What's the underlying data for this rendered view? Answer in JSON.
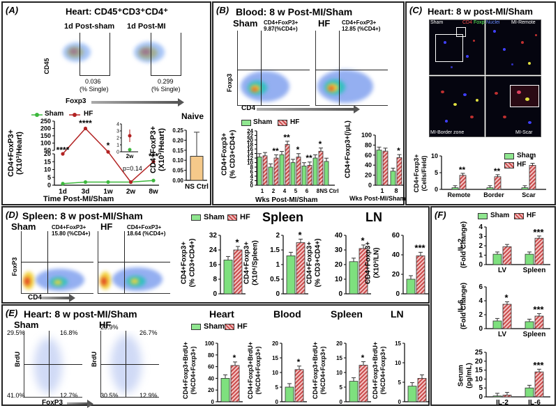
{
  "panelA": {
    "label": "(A)",
    "title": "Heart: CD45⁺CD3⁺CD4⁺",
    "sham_title": "1d Post-sham",
    "mi_title": "1d Post-MI",
    "x_marker": "Foxp3",
    "y_marker": "CD45",
    "sham_pct": "0.036",
    "mi_pct": "0.299",
    "pct_unit": "(% Single)",
    "legend_sham": "Sham",
    "legend_hf": "HF",
    "inset_x": "2w",
    "inset_p": "p=0.14",
    "naive_title": "Naive",
    "naive_x": "NS Ctrl",
    "ylabel": "CD4+FoxP3+",
    "ylabel2": "(X10³/Heart)",
    "xlabel": "Time Post-MI/Sham",
    "stars": [
      "****",
      "****",
      "*",
      "***"
    ]
  },
  "panelB": {
    "label": "(B)",
    "title": "Blood: 8 w Post-MI/Sham",
    "sham": "Sham",
    "hf": "HF",
    "gate1": "CD4+FoxP3+",
    "gate1b": "9.87(%CD4+)",
    "gate2": "CD4+FoxP3+",
    "gate2b": "12.85 (%CD4+)",
    "xm": "CD4",
    "ym": "Foxp3",
    "legend_sham": "Sham",
    "legend_hf": "HF",
    "ylabel_left": "CD4+Foxp3+",
    "ylabel_left2": "(% CD3+CD4+)",
    "xlabel_left": "Wks Post-MI/Sham",
    "ylabel_right": "CD4+Foxp3+(/μL)",
    "xlabel_right": "Wks Post-MI/Sham",
    "ns_ctrl": "NS Ctrl"
  },
  "panelC": {
    "label": "(C)",
    "title": "Heart: 8 w post-MI/Sham",
    "q_sham": "Sham",
    "q_cd4": "CD4",
    "q_foxp3": "Foxp3",
    "q_nuclei": "Nuclei",
    "q_remote": "MI-Remote",
    "q_border": "MI-Border zone",
    "q_scar": "MI-Scar",
    "legend_sham": "Sham",
    "legend_hf": "HF",
    "ylabel": "CD4+Foxp3+",
    "ylabel2": "(Cells/Field)"
  },
  "panelD": {
    "label": "(D)",
    "title": "Spleen: 8 w post-MI/Sham",
    "sham": "Sham",
    "hf": "HF",
    "gate1": "CD4+FoxP3+",
    "gate1b": "15.80 (%CD4+)",
    "gate2": "CD4+FoxP3+",
    "gate2b": "18.64 (%CD4+)",
    "xm": "CD4",
    "ym": "FoxP3",
    "legend_sham": "Sham",
    "legend_hf": "HF",
    "spleen": "Spleen",
    "ln": "LN",
    "yl1": "CD4+Foxp3+",
    "yl1b": "(% CD3+CD4+)",
    "yl2": "CD4+Foxp3+",
    "yl2b": "(X10⁶/Spleen)",
    "yl3": "CD4+Foxp3+",
    "yl3b": "(% CD3+CD4+)",
    "yl4": "CD4+Foxp3+",
    "yl4b": "(X10³/LN)"
  },
  "panelE": {
    "label": "(E)",
    "title": "Heart: 8 w post-MI/Sham",
    "sham": "Sham",
    "hf": "HF",
    "q_sham": [
      "29.5%",
      "16.8%",
      "41.0%",
      "12.7%"
    ],
    "q_hf": [
      "29.9%",
      "26.7%",
      "30.5%",
      "12.9%"
    ],
    "xm": "FoxP3",
    "ym": "BrdU",
    "legend_sham": "Sham",
    "legend_hf": "HF",
    "heart": "Heart",
    "blood": "Blood",
    "spleen": "Spleen",
    "ln": "LN",
    "yl": "CD4+Foxp3+BrdU+",
    "ylb": "(%CD4+Foxp3+)"
  },
  "panelF": {
    "label": "(F)",
    "legend_sham": "Sham",
    "legend_hf": "HF",
    "il2": "IL-2",
    "il6": "IL-6",
    "fold": "(Fold Change)",
    "serum": "Serum",
    "pgml": "(pg/mL)",
    "lv": "LV",
    "spleen": "Spleen"
  },
  "colors": {
    "sham": "#7ee07e",
    "hf": "#c94a4a",
    "line_hf": "#b22222",
    "line_sham": "#3cb83c",
    "naive": "#f5c98a"
  },
  "chart_data": [
    {
      "id": "A-time",
      "type": "line",
      "categories": [
        "1d",
        "3d",
        "1w",
        "2w",
        "8w"
      ],
      "series": [
        {
          "name": "Sham",
          "values": [
            1,
            2,
            2,
            2,
            3
          ]
        },
        {
          "name": "HF",
          "values": [
            20,
            200,
            40,
            2,
            15
          ]
        }
      ],
      "yticks": [
        0,
        5,
        10,
        15,
        20,
        50,
        100,
        150,
        200,
        250
      ],
      "y_broken": true
    },
    {
      "id": "A-inset",
      "type": "scatter",
      "categories": [
        "2w"
      ],
      "series": [
        {
          "name": "Sham",
          "values": [
            0.3
          ]
        },
        {
          "name": "HF",
          "values": [
            2.3
          ]
        }
      ],
      "yticks": [
        0,
        1,
        2,
        3,
        4
      ]
    },
    {
      "id": "A-naive",
      "type": "bar",
      "categories": [
        "NS Ctrl"
      ],
      "values": [
        0.12
      ],
      "errors": [
        0.12
      ],
      "yticks": [
        0.0,
        0.05,
        0.1,
        0.15,
        0.2,
        0.25
      ],
      "ylim": [
        0,
        0.25
      ]
    },
    {
      "id": "B-pct",
      "type": "bar",
      "categories": [
        "1",
        "2",
        "4",
        "5",
        "6",
        "8",
        "NS Ctrl"
      ],
      "series": [
        {
          "name": "Sham",
          "values": [
            12.5,
            8,
            13.5,
            10,
            8.5,
            12,
            10.5
          ]
        },
        {
          "name": "HF",
          "values": [
            13,
            12,
            18,
            12.5,
            8.8,
            15,
            null
          ]
        }
      ],
      "stars": [
        "",
        "**",
        "**",
        "*",
        "**",
        "*",
        ""
      ],
      "yticks": [
        0,
        2,
        4,
        6,
        8,
        10,
        12,
        14,
        16,
        18,
        20,
        22,
        24
      ],
      "ylim": [
        0,
        24
      ]
    },
    {
      "id": "B-count",
      "type": "bar",
      "categories": [
        "1",
        "8"
      ],
      "series": [
        {
          "name": "Sham",
          "values": [
            70,
            28
          ]
        },
        {
          "name": "HF",
          "values": [
            68,
            55
          ]
        }
      ],
      "stars": [
        "",
        "*"
      ],
      "yticks": [
        0,
        20,
        40,
        60,
        80,
        100
      ],
      "ylim": [
        0,
        100
      ]
    },
    {
      "id": "C-cells",
      "type": "bar",
      "categories": [
        "Remote",
        "Border",
        "Scar"
      ],
      "series": [
        {
          "name": "Sham",
          "values": [
            0.5,
            0.5,
            0.5
          ]
        },
        {
          "name": "HF",
          "values": [
            4.2,
            3.8,
            7.2
          ]
        }
      ],
      "stars": [
        "**",
        "**",
        "*"
      ],
      "yticks": [
        0,
        5,
        10
      ],
      "ylim": [
        0,
        10
      ]
    },
    {
      "id": "D-spleen-pct",
      "type": "bar",
      "series": [
        {
          "name": "Sham",
          "values": [
            18.5
          ]
        },
        {
          "name": "HF",
          "values": [
            24
          ]
        }
      ],
      "stars": [
        "*"
      ],
      "yticks": [
        0,
        8,
        16,
        24,
        32
      ],
      "ylim": [
        0,
        32
      ]
    },
    {
      "id": "D-spleen-count",
      "type": "bar",
      "series": [
        {
          "name": "Sham",
          "values": [
            1.3
          ]
        },
        {
          "name": "HF",
          "values": [
            1.75
          ]
        }
      ],
      "stars": [
        "*"
      ],
      "yticks": [
        0.0,
        0.5,
        1.0,
        1.5,
        2.0
      ],
      "ylim": [
        0,
        2.0
      ]
    },
    {
      "id": "D-ln-pct",
      "type": "bar",
      "series": [
        {
          "name": "Sham",
          "values": [
            22
          ]
        },
        {
          "name": "HF",
          "values": [
            31
          ]
        }
      ],
      "stars": [
        "*"
      ],
      "yticks": [
        0,
        10,
        20,
        30,
        40
      ],
      "ylim": [
        0,
        40
      ]
    },
    {
      "id": "D-ln-count",
      "type": "bar",
      "series": [
        {
          "name": "Sham",
          "values": [
            15
          ]
        },
        {
          "name": "HF",
          "values": [
            39
          ]
        }
      ],
      "stars": [
        "***"
      ],
      "yticks": [
        0,
        20,
        40,
        60
      ],
      "ylim": [
        0,
        60
      ]
    },
    {
      "id": "E-heart",
      "type": "bar",
      "series": [
        {
          "name": "Sham",
          "values": [
            40
          ]
        },
        {
          "name": "HF",
          "values": [
            62
          ]
        }
      ],
      "stars": [
        "*"
      ],
      "yticks": [
        0,
        20,
        40,
        60,
        80,
        100
      ],
      "ylim": [
        0,
        100
      ]
    },
    {
      "id": "E-blood",
      "type": "bar",
      "series": [
        {
          "name": "Sham",
          "values": [
            5
          ]
        },
        {
          "name": "HF",
          "values": [
            11
          ]
        }
      ],
      "stars": [
        "*"
      ],
      "yticks": [
        0,
        5,
        10,
        15,
        20
      ],
      "ylim": [
        0,
        20
      ]
    },
    {
      "id": "E-spleen",
      "type": "bar",
      "series": [
        {
          "name": "Sham",
          "values": [
            7
          ]
        },
        {
          "name": "HF",
          "values": [
            12.5
          ]
        }
      ],
      "stars": [
        "*"
      ],
      "yticks": [
        0,
        5,
        10,
        15,
        20
      ],
      "ylim": [
        0,
        20
      ]
    },
    {
      "id": "E-ln",
      "type": "bar",
      "series": [
        {
          "name": "Sham",
          "values": [
            4
          ]
        },
        {
          "name": "HF",
          "values": [
            6
          ]
        }
      ],
      "stars": [
        ""
      ],
      "yticks": [
        0,
        5,
        10,
        15
      ],
      "ylim": [
        0,
        15
      ]
    },
    {
      "id": "F-il2",
      "type": "bar",
      "categories": [
        "LV",
        "Spleen"
      ],
      "series": [
        {
          "name": "Sham",
          "values": [
            1.1,
            1.1
          ]
        },
        {
          "name": "HF",
          "values": [
            1.9,
            2.8
          ]
        }
      ],
      "stars": [
        "",
        "***"
      ],
      "yticks": [
        0,
        1,
        2,
        3,
        4
      ],
      "ylim": [
        0,
        4
      ]
    },
    {
      "id": "F-il6",
      "type": "bar",
      "categories": [
        "LV",
        "Spleen"
      ],
      "series": [
        {
          "name": "Sham",
          "values": [
            1.1,
            1.0
          ]
        },
        {
          "name": "HF",
          "values": [
            3.5,
            1.8
          ]
        }
      ],
      "stars": [
        "*",
        "***"
      ],
      "yticks": [
        0,
        2,
        4,
        6
      ],
      "ylim": [
        0,
        6
      ]
    },
    {
      "id": "F-serum",
      "type": "bar",
      "categories": [
        "IL-2",
        "IL-6"
      ],
      "series": [
        {
          "name": "Sham",
          "values": [
            0.5,
            5
          ]
        },
        {
          "name": "HF",
          "values": [
            1,
            14
          ]
        }
      ],
      "stars": [
        "",
        "***"
      ],
      "yticks": [
        0,
        5,
        10,
        15,
        20,
        25
      ],
      "ylim": [
        0,
        25
      ]
    }
  ]
}
